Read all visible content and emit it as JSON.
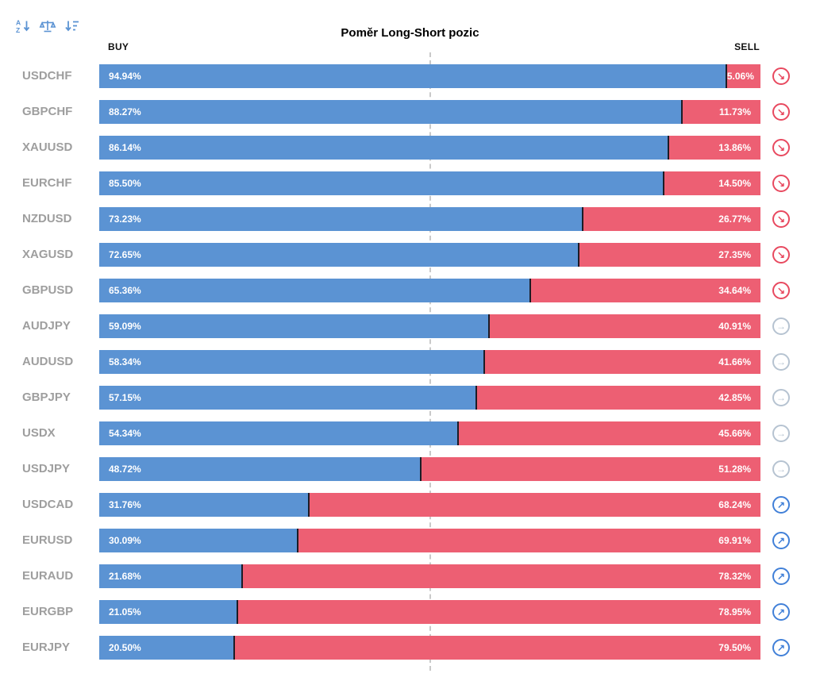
{
  "title": "Poměr Long-Short pozic",
  "header": {
    "buy": "BUY",
    "sell": "SELL"
  },
  "toolbar": {
    "icons": [
      "sort-alpha",
      "balance",
      "sort-amount"
    ]
  },
  "colors": {
    "buy_bar": "#5b93d3",
    "sell_bar": "#ed5f73",
    "segment_divider": "#1c1c26",
    "pair_label": "#9e9e9e",
    "center_line": "#c9c9c9",
    "toolbar_icon": "#5b93d3",
    "signal_down": "#e8495f",
    "signal_flat": "#b6c3d1",
    "signal_up": "#4180d8"
  },
  "chart_data": {
    "type": "bar",
    "orientation": "horizontal",
    "stacked": true,
    "unit": "%",
    "xlim": [
      0,
      100
    ],
    "center_line_value": 50,
    "title": "Poměr Long-Short pozic",
    "series_names": [
      "BUY",
      "SELL"
    ],
    "rows": [
      {
        "pair": "USDCHF",
        "buy": 94.94,
        "sell": 5.06,
        "signal": "down"
      },
      {
        "pair": "GBPCHF",
        "buy": 88.27,
        "sell": 11.73,
        "signal": "down"
      },
      {
        "pair": "XAUUSD",
        "buy": 86.14,
        "sell": 13.86,
        "signal": "down"
      },
      {
        "pair": "EURCHF",
        "buy": 85.5,
        "sell": 14.5,
        "signal": "down"
      },
      {
        "pair": "NZDUSD",
        "buy": 73.23,
        "sell": 26.77,
        "signal": "down"
      },
      {
        "pair": "XAGUSD",
        "buy": 72.65,
        "sell": 27.35,
        "signal": "down"
      },
      {
        "pair": "GBPUSD",
        "buy": 65.36,
        "sell": 34.64,
        "signal": "down"
      },
      {
        "pair": "AUDJPY",
        "buy": 59.09,
        "sell": 40.91,
        "signal": "flat"
      },
      {
        "pair": "AUDUSD",
        "buy": 58.34,
        "sell": 41.66,
        "signal": "flat"
      },
      {
        "pair": "GBPJPY",
        "buy": 57.15,
        "sell": 42.85,
        "signal": "flat"
      },
      {
        "pair": "USDX",
        "buy": 54.34,
        "sell": 45.66,
        "signal": "flat"
      },
      {
        "pair": "USDJPY",
        "buy": 48.72,
        "sell": 51.28,
        "signal": "flat"
      },
      {
        "pair": "USDCAD",
        "buy": 31.76,
        "sell": 68.24,
        "signal": "up"
      },
      {
        "pair": "EURUSD",
        "buy": 30.09,
        "sell": 69.91,
        "signal": "up"
      },
      {
        "pair": "EURAUD",
        "buy": 21.68,
        "sell": 78.32,
        "signal": "up"
      },
      {
        "pair": "EURGBP",
        "buy": 21.05,
        "sell": 78.95,
        "signal": "up"
      },
      {
        "pair": "EURJPY",
        "buy": 20.5,
        "sell": 79.5,
        "signal": "up"
      }
    ]
  }
}
